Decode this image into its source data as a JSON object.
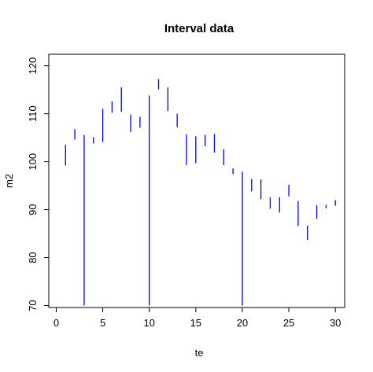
{
  "chart_data": {
    "type": "interval",
    "title": "Interval data",
    "xlabel": "te",
    "ylabel": "m2",
    "xlim": [
      0,
      31
    ],
    "ylim": [
      70,
      122
    ],
    "x_ticks": [
      0,
      5,
      10,
      15,
      20,
      25,
      30
    ],
    "y_ticks": [
      70,
      80,
      90,
      100,
      110,
      120
    ],
    "grid": false,
    "series_color": "#0000ff",
    "intervals": [
      {
        "x": 1,
        "low": 99.2,
        "high": 103.5
      },
      {
        "x": 2,
        "low": 104.6,
        "high": 106.8
      },
      {
        "x": 3,
        "low": 70,
        "high": 105.6
      },
      {
        "x": 4,
        "low": 103.8,
        "high": 105.1
      },
      {
        "x": 5,
        "low": 104.1,
        "high": 111.0
      },
      {
        "x": 6,
        "low": 110.2,
        "high": 112.6
      },
      {
        "x": 7,
        "low": 110.4,
        "high": 115.5
      },
      {
        "x": 8,
        "low": 106.2,
        "high": 109.8
      },
      {
        "x": 9,
        "low": 107.1,
        "high": 109.4
      },
      {
        "x": 10,
        "low": 70,
        "high": 113.8
      },
      {
        "x": 11,
        "low": 115.1,
        "high": 117.2
      },
      {
        "x": 12,
        "low": 110.6,
        "high": 115.5
      },
      {
        "x": 13,
        "low": 107.2,
        "high": 110.0
      },
      {
        "x": 14,
        "low": 99.3,
        "high": 105.7
      },
      {
        "x": 15,
        "low": 99.7,
        "high": 105.3
      },
      {
        "x": 16,
        "low": 103.2,
        "high": 105.6
      },
      {
        "x": 17,
        "low": 101.9,
        "high": 105.8
      },
      {
        "x": 18,
        "low": 99.3,
        "high": 102.6
      },
      {
        "x": 19,
        "low": 97.4,
        "high": 98.6
      },
      {
        "x": 20,
        "low": 70,
        "high": 97.9
      },
      {
        "x": 21,
        "low": 93.8,
        "high": 96.4
      },
      {
        "x": 22,
        "low": 92.2,
        "high": 96.3
      },
      {
        "x": 23,
        "low": 90.2,
        "high": 92.6
      },
      {
        "x": 24,
        "low": 89.4,
        "high": 92.6
      },
      {
        "x": 25,
        "low": 92.8,
        "high": 95.2
      },
      {
        "x": 26,
        "low": 86.6,
        "high": 91.8
      },
      {
        "x": 27,
        "low": 83.7,
        "high": 86.7
      },
      {
        "x": 28,
        "low": 88.1,
        "high": 90.9
      },
      {
        "x": 29,
        "low": 90.3,
        "high": 91.0
      },
      {
        "x": 30,
        "low": 90.8,
        "high": 92.0
      }
    ]
  }
}
